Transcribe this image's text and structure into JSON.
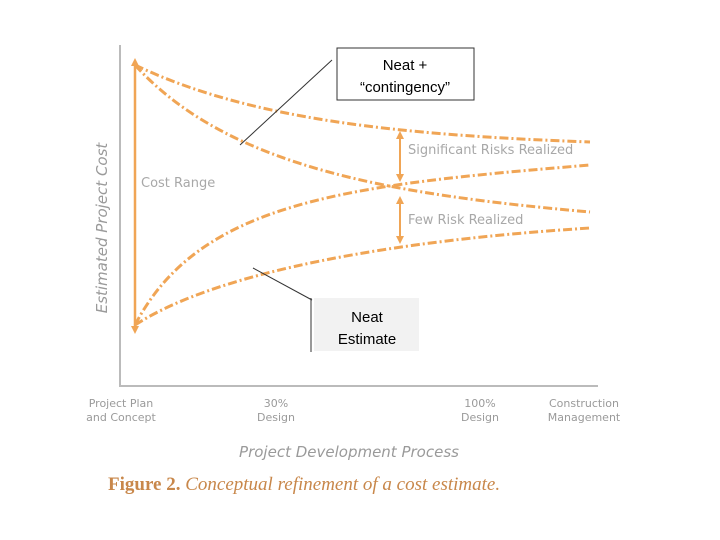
{
  "y_axis_label": "Estimated Project Cost",
  "x_axis_label": "Project Development Process",
  "x_labels": [
    [
      "Project Plan",
      "and Concept"
    ],
    [
      "30%",
      "Design"
    ],
    [
      "100%",
      "Design"
    ],
    [
      "Construction",
      "Management"
    ]
  ],
  "annotations": {
    "cost_range": "Cost Range",
    "significant": "Significant Risks Realized",
    "few": "Few Risk Realized"
  },
  "callouts": [
    [
      "Neat +",
      "“contingency”"
    ],
    [
      "Neat",
      "Estimate"
    ]
  ],
  "caption": {
    "label": "Figure 2.",
    "text": "Conceptual refinement of a cost estimate."
  }
}
